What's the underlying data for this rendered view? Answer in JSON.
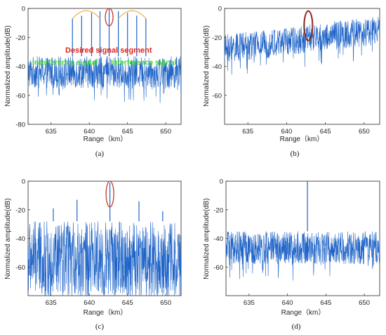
{
  "colors": {
    "signal": "#1f64c8",
    "desired": "#e0241b",
    "interference": "#37d62f",
    "arc": "#e8b84a"
  },
  "chart_data": [
    {
      "type": "line",
      "panel_label": "(a)",
      "xlabel": "Range（km）",
      "ylabel": "Normalized amplitude(dB)",
      "xlim": [
        632,
        652
      ],
      "ylim": [
        -80,
        0
      ],
      "xticks": [
        "635",
        "640",
        "645",
        "650"
      ],
      "yticks": [
        "0",
        "-20",
        "-40",
        "-60",
        "-80"
      ],
      "noise_band": [
        -55,
        -33
      ],
      "spikes": [
        {
          "x": 637.8,
          "y": -7
        },
        {
          "x": 639.0,
          "y": -5
        },
        {
          "x": 640.3,
          "y": -3
        },
        {
          "x": 641.4,
          "y": -2
        },
        {
          "x": 642.6,
          "y": 0
        },
        {
          "x": 643.8,
          "y": -2
        },
        {
          "x": 645.0,
          "y": -3
        },
        {
          "x": 646.2,
          "y": -5
        },
        {
          "x": 647.4,
          "y": -7
        }
      ],
      "highlight": {
        "x": 642.6,
        "y_range": [
          -12,
          0
        ]
      },
      "annotations": {
        "desired": "Desired signal segment",
        "interference_left": "Interference signal",
        "interference_right": "Interference signal"
      }
    },
    {
      "type": "line",
      "panel_label": "(b)",
      "xlabel": "Range（km）",
      "ylabel": "Normalized amplitude(dB)",
      "xlim": [
        632,
        652
      ],
      "ylim": [
        -80,
        0
      ],
      "xticks": [
        "635",
        "640",
        "645",
        "650"
      ],
      "yticks": [
        "0",
        "-20",
        "-40",
        "-60"
      ],
      "noise_band_start": [
        -38,
        -18
      ],
      "noise_band_end": [
        -25,
        -5
      ],
      "spikes": [],
      "highlight": {
        "x": 642.8,
        "y_range": [
          -22,
          -2
        ]
      }
    },
    {
      "type": "line",
      "panel_label": "(c)",
      "xlabel": "Range（km）",
      "ylabel": "Normalized amplitude(dB)",
      "xlim": [
        632,
        652
      ],
      "ylim": [
        -80,
        0
      ],
      "xticks": [
        "635",
        "640",
        "645",
        "650"
      ],
      "yticks": [
        "0",
        "-20",
        "-40",
        "-60"
      ],
      "noise_band": [
        -80,
        -28
      ],
      "spikes": [
        {
          "x": 642.7,
          "y": -1
        },
        {
          "x": 638.4,
          "y": -13
        },
        {
          "x": 646.5,
          "y": -14
        },
        {
          "x": 635.3,
          "y": -19
        },
        {
          "x": 649.6,
          "y": -21
        }
      ],
      "highlight": {
        "x": 642.7,
        "y_range": [
          -18,
          0
        ]
      }
    },
    {
      "type": "line",
      "panel_label": "(d)",
      "xlabel": "Range（km）",
      "ylabel": "Normalized amplitude(dB)",
      "xlim": [
        632,
        652
      ],
      "ylim": [
        -80,
        0
      ],
      "xticks": [
        "635",
        "640",
        "645",
        "650"
      ],
      "yticks": [
        "0",
        "-20",
        "-40",
        "-60"
      ],
      "noise_band": [
        -58,
        -35
      ],
      "spikes": [
        {
          "x": 642.6,
          "y": 0
        }
      ],
      "highlight": null
    }
  ]
}
